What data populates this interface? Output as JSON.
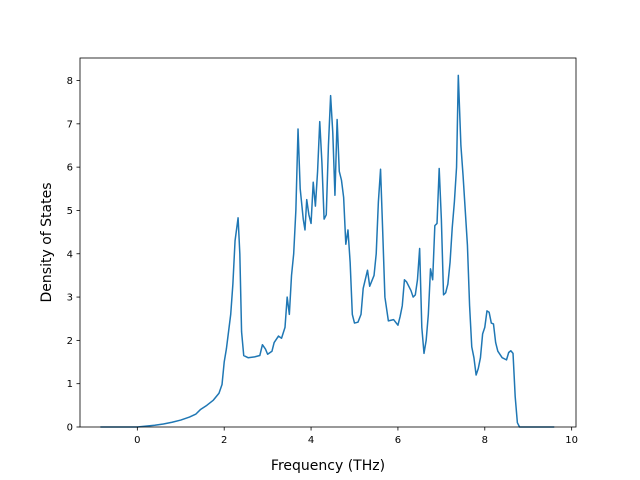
{
  "chart_data": {
    "type": "line",
    "title": "",
    "xlabel": "Frequency (THz)",
    "ylabel": "Density of States",
    "xlim": [
      -1.32,
      10.1
    ],
    "ylim": [
      0,
      8.52
    ],
    "xticks": [
      0,
      2,
      4,
      6,
      8,
      10
    ],
    "yticks": [
      0,
      1,
      2,
      3,
      4,
      5,
      6,
      7,
      8
    ],
    "grid": false,
    "legend": "none",
    "series": [
      {
        "name": "",
        "color": "#1f77b4",
        "points": [
          [
            -0.85,
            0.0
          ],
          [
            -0.2,
            0.0
          ],
          [
            0.0,
            0.0
          ],
          [
            0.2,
            0.02
          ],
          [
            0.4,
            0.04
          ],
          [
            0.6,
            0.07
          ],
          [
            0.8,
            0.11
          ],
          [
            1.0,
            0.16
          ],
          [
            1.2,
            0.23
          ],
          [
            1.35,
            0.3
          ],
          [
            1.45,
            0.4
          ],
          [
            1.6,
            0.5
          ],
          [
            1.75,
            0.62
          ],
          [
            1.88,
            0.78
          ],
          [
            1.95,
            0.98
          ],
          [
            2.0,
            1.5
          ],
          [
            2.05,
            1.8
          ],
          [
            2.1,
            2.2
          ],
          [
            2.15,
            2.6
          ],
          [
            2.2,
            3.3
          ],
          [
            2.25,
            4.3
          ],
          [
            2.32,
            4.83
          ],
          [
            2.36,
            4.0
          ],
          [
            2.4,
            2.2
          ],
          [
            2.45,
            1.65
          ],
          [
            2.55,
            1.6
          ],
          [
            2.7,
            1.62
          ],
          [
            2.82,
            1.65
          ],
          [
            2.88,
            1.9
          ],
          [
            2.95,
            1.8
          ],
          [
            3.0,
            1.68
          ],
          [
            3.1,
            1.75
          ],
          [
            3.15,
            1.95
          ],
          [
            3.25,
            2.1
          ],
          [
            3.32,
            2.05
          ],
          [
            3.4,
            2.3
          ],
          [
            3.45,
            3.0
          ],
          [
            3.5,
            2.6
          ],
          [
            3.55,
            3.5
          ],
          [
            3.6,
            4.0
          ],
          [
            3.65,
            5.0
          ],
          [
            3.7,
            6.88
          ],
          [
            3.75,
            5.5
          ],
          [
            3.82,
            4.8
          ],
          [
            3.86,
            4.55
          ],
          [
            3.9,
            5.25
          ],
          [
            3.95,
            4.9
          ],
          [
            4.0,
            4.7
          ],
          [
            4.05,
            5.65
          ],
          [
            4.1,
            5.1
          ],
          [
            4.15,
            5.9
          ],
          [
            4.2,
            7.05
          ],
          [
            4.25,
            6.1
          ],
          [
            4.3,
            4.8
          ],
          [
            4.35,
            4.9
          ],
          [
            4.4,
            6.5
          ],
          [
            4.45,
            7.65
          ],
          [
            4.5,
            6.8
          ],
          [
            4.55,
            5.35
          ],
          [
            4.6,
            7.1
          ],
          [
            4.65,
            5.9
          ],
          [
            4.7,
            5.7
          ],
          [
            4.75,
            5.3
          ],
          [
            4.8,
            4.22
          ],
          [
            4.85,
            4.55
          ],
          [
            4.9,
            3.8
          ],
          [
            4.95,
            2.6
          ],
          [
            5.0,
            2.4
          ],
          [
            5.08,
            2.42
          ],
          [
            5.15,
            2.6
          ],
          [
            5.2,
            3.2
          ],
          [
            5.3,
            3.62
          ],
          [
            5.35,
            3.25
          ],
          [
            5.45,
            3.5
          ],
          [
            5.5,
            4.0
          ],
          [
            5.55,
            5.2
          ],
          [
            5.6,
            5.95
          ],
          [
            5.65,
            4.5
          ],
          [
            5.7,
            3.0
          ],
          [
            5.78,
            2.45
          ],
          [
            5.9,
            2.48
          ],
          [
            6.0,
            2.35
          ],
          [
            6.05,
            2.55
          ],
          [
            6.1,
            2.8
          ],
          [
            6.15,
            3.4
          ],
          [
            6.2,
            3.35
          ],
          [
            6.3,
            3.15
          ],
          [
            6.35,
            3.0
          ],
          [
            6.4,
            3.05
          ],
          [
            6.45,
            3.4
          ],
          [
            6.5,
            4.12
          ],
          [
            6.55,
            2.3
          ],
          [
            6.6,
            1.7
          ],
          [
            6.65,
            2.0
          ],
          [
            6.7,
            2.6
          ],
          [
            6.75,
            3.65
          ],
          [
            6.8,
            3.4
          ],
          [
            6.85,
            4.65
          ],
          [
            6.9,
            4.7
          ],
          [
            6.95,
            5.97
          ],
          [
            7.0,
            4.8
          ],
          [
            7.05,
            3.05
          ],
          [
            7.1,
            3.1
          ],
          [
            7.15,
            3.3
          ],
          [
            7.2,
            3.8
          ],
          [
            7.25,
            4.6
          ],
          [
            7.3,
            5.2
          ],
          [
            7.35,
            6.0
          ],
          [
            7.39,
            8.12
          ],
          [
            7.45,
            6.5
          ],
          [
            7.5,
            5.8
          ],
          [
            7.55,
            5.0
          ],
          [
            7.6,
            4.2
          ],
          [
            7.65,
            2.8
          ],
          [
            7.7,
            1.85
          ],
          [
            7.75,
            1.6
          ],
          [
            7.8,
            1.2
          ],
          [
            7.85,
            1.35
          ],
          [
            7.9,
            1.6
          ],
          [
            7.95,
            2.15
          ],
          [
            8.0,
            2.3
          ],
          [
            8.05,
            2.68
          ],
          [
            8.1,
            2.65
          ],
          [
            8.15,
            2.4
          ],
          [
            8.2,
            2.38
          ],
          [
            8.25,
            1.95
          ],
          [
            8.3,
            1.75
          ],
          [
            8.4,
            1.6
          ],
          [
            8.5,
            1.55
          ],
          [
            8.55,
            1.72
          ],
          [
            8.6,
            1.76
          ],
          [
            8.65,
            1.7
          ],
          [
            8.7,
            0.7
          ],
          [
            8.75,
            0.1
          ],
          [
            8.8,
            0.0
          ],
          [
            9.2,
            0.0
          ],
          [
            9.6,
            0.0
          ]
        ]
      }
    ]
  }
}
